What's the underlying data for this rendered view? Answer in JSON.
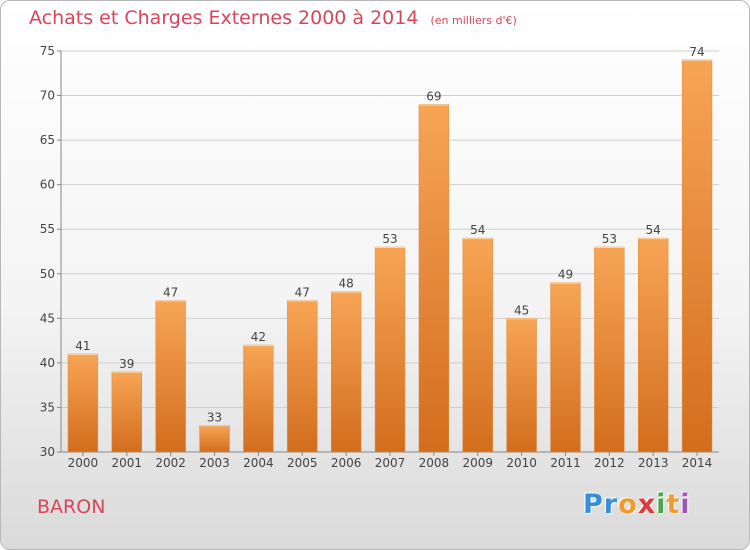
{
  "header": {
    "title": "Achats et Charges Externes 2000 à 2014",
    "subtitle": "(en milliers d'€)"
  },
  "footer": {
    "commune": "BARON",
    "logo_text": "Proxiti"
  },
  "colors": {
    "title": "#d9455a",
    "bar_light": "#f7a555",
    "bar_dark": "#d36d1e",
    "logo_letters": [
      "#3a8ed8",
      "#3a8ed8",
      "#f29a2e",
      "#e23a3a",
      "#4aa84c",
      "#f29a2e",
      "#9b59b6"
    ]
  },
  "chart_data": {
    "type": "bar",
    "categories": [
      "2000",
      "2001",
      "2002",
      "2003",
      "2004",
      "2005",
      "2006",
      "2007",
      "2008",
      "2009",
      "2010",
      "2011",
      "2012",
      "2013",
      "2014"
    ],
    "values": [
      41,
      39,
      47,
      33,
      42,
      47,
      48,
      53,
      69,
      54,
      45,
      49,
      53,
      54,
      74
    ],
    "title": "Achats et Charges Externes 2000 à 2014",
    "ylim": [
      30,
      75
    ],
    "yticks": [
      30,
      35,
      40,
      45,
      50,
      55,
      60,
      65,
      70,
      75
    ],
    "grid": true,
    "data_labels": true
  }
}
